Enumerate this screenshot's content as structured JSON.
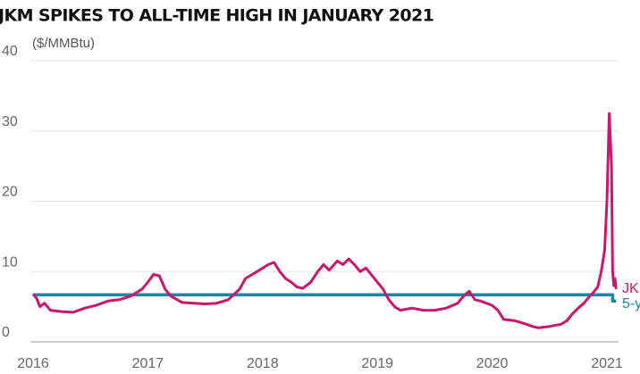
{
  "chart_data": {
    "type": "line",
    "title": "JKM SPIKES TO ALL-TIME HIGH IN JANUARY 2021",
    "subtitle": "($/MMBtu)",
    "xlim": [
      2016,
      2021.1
    ],
    "xticks": [
      2016,
      2017,
      2018,
      2019,
      2020,
      2021
    ],
    "ylim": [
      0,
      40
    ],
    "yticks": [
      0,
      10,
      20,
      30,
      40
    ],
    "grid": true,
    "series": [
      {
        "name": "JK",
        "color": "#c8176d",
        "x": [
          2016.0,
          2016.03,
          2016.06,
          2016.1,
          2016.15,
          2016.25,
          2016.35,
          2016.45,
          2016.55,
          2016.65,
          2016.75,
          2016.85,
          2016.95,
          2017.0,
          2017.05,
          2017.1,
          2017.15,
          2017.2,
          2017.3,
          2017.4,
          2017.5,
          2017.6,
          2017.7,
          2017.8,
          2017.85,
          2017.95,
          2018.05,
          2018.1,
          2018.15,
          2018.2,
          2018.25,
          2018.3,
          2018.35,
          2018.42,
          2018.48,
          2018.53,
          2018.58,
          2018.65,
          2018.7,
          2018.75,
          2018.8,
          2018.85,
          2018.9,
          2018.95,
          2019.0,
          2019.05,
          2019.1,
          2019.15,
          2019.2,
          2019.3,
          2019.4,
          2019.5,
          2019.6,
          2019.7,
          2019.75,
          2019.8,
          2019.85,
          2019.9,
          2020.0,
          2020.05,
          2020.1,
          2020.2,
          2020.3,
          2020.35,
          2020.4,
          2020.5,
          2020.6,
          2020.65,
          2020.7,
          2020.75,
          2020.8,
          2020.85,
          2020.88,
          2020.92,
          2020.95,
          2020.98,
          2021.0,
          2021.02,
          2021.04,
          2021.05,
          2021.06,
          2021.07,
          2021.08
        ],
        "values": [
          6.8,
          6.2,
          5.0,
          5.5,
          4.5,
          4.3,
          4.2,
          4.8,
          5.2,
          5.8,
          6.0,
          6.5,
          7.5,
          8.5,
          9.6,
          9.4,
          7.5,
          6.5,
          5.6,
          5.5,
          5.4,
          5.5,
          6.0,
          7.5,
          9.0,
          10.0,
          11.0,
          11.3,
          10.0,
          9.0,
          8.5,
          7.8,
          7.6,
          8.5,
          10.0,
          11.0,
          10.2,
          11.5,
          11.0,
          11.8,
          11.0,
          10.0,
          10.5,
          9.5,
          8.5,
          7.5,
          6.0,
          5.0,
          4.5,
          4.8,
          4.5,
          4.5,
          4.8,
          5.5,
          6.5,
          7.2,
          6.0,
          5.8,
          5.2,
          4.5,
          3.2,
          3.0,
          2.5,
          2.2,
          2.0,
          2.2,
          2.5,
          3.0,
          4.0,
          4.8,
          5.5,
          6.5,
          7.0,
          7.8,
          10.0,
          13.0,
          20.0,
          32.5,
          25.0,
          10.0,
          8.0,
          9.0,
          7.5
        ]
      },
      {
        "name": "5-y",
        "color": "#1a86a8",
        "x": [
          2016.0,
          2021.05,
          2021.05,
          2021.08
        ],
        "values": [
          6.7,
          6.7,
          5.8,
          5.8
        ]
      }
    ]
  }
}
